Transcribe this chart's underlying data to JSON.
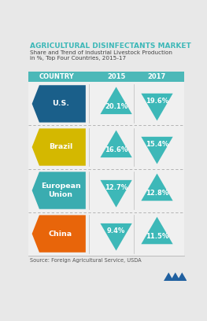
{
  "title": "AGRICULTURAL DISINFECTANTS MARKET",
  "subtitle": "Share and Trend of Industrial Livestock Production\nin %, Top Four Countries, 2015-17",
  "header_bg": "#4cb8b8",
  "header_text_color": "#ffffff",
  "col_headers": [
    "COUNTRY",
    "2015",
    "2017"
  ],
  "country_colors": [
    "#1a5f8a",
    "#d4b800",
    "#3aacb0",
    "#e8650a"
  ],
  "values_2015": [
    "20.1%",
    "16.6%",
    "12.7%",
    "9.4%"
  ],
  "values_2017": [
    "19.6%",
    "15.4%",
    "12.8%",
    "11.5%"
  ],
  "up_2015": [
    true,
    true,
    false,
    false
  ],
  "up_2017": [
    false,
    false,
    true,
    true
  ],
  "country_labels": [
    "U.S.",
    "Brazil",
    "European\nUnion",
    "China"
  ],
  "triangle_color": "#3db8b8",
  "bg_color": "#e8e8e8",
  "row_bg_color": "#f0f0f0",
  "title_color": "#3db8b8",
  "subtitle_color": "#444444",
  "source_text": "Source: Foreign Agricultural Service, USDA",
  "logo_color": "#2060a0"
}
